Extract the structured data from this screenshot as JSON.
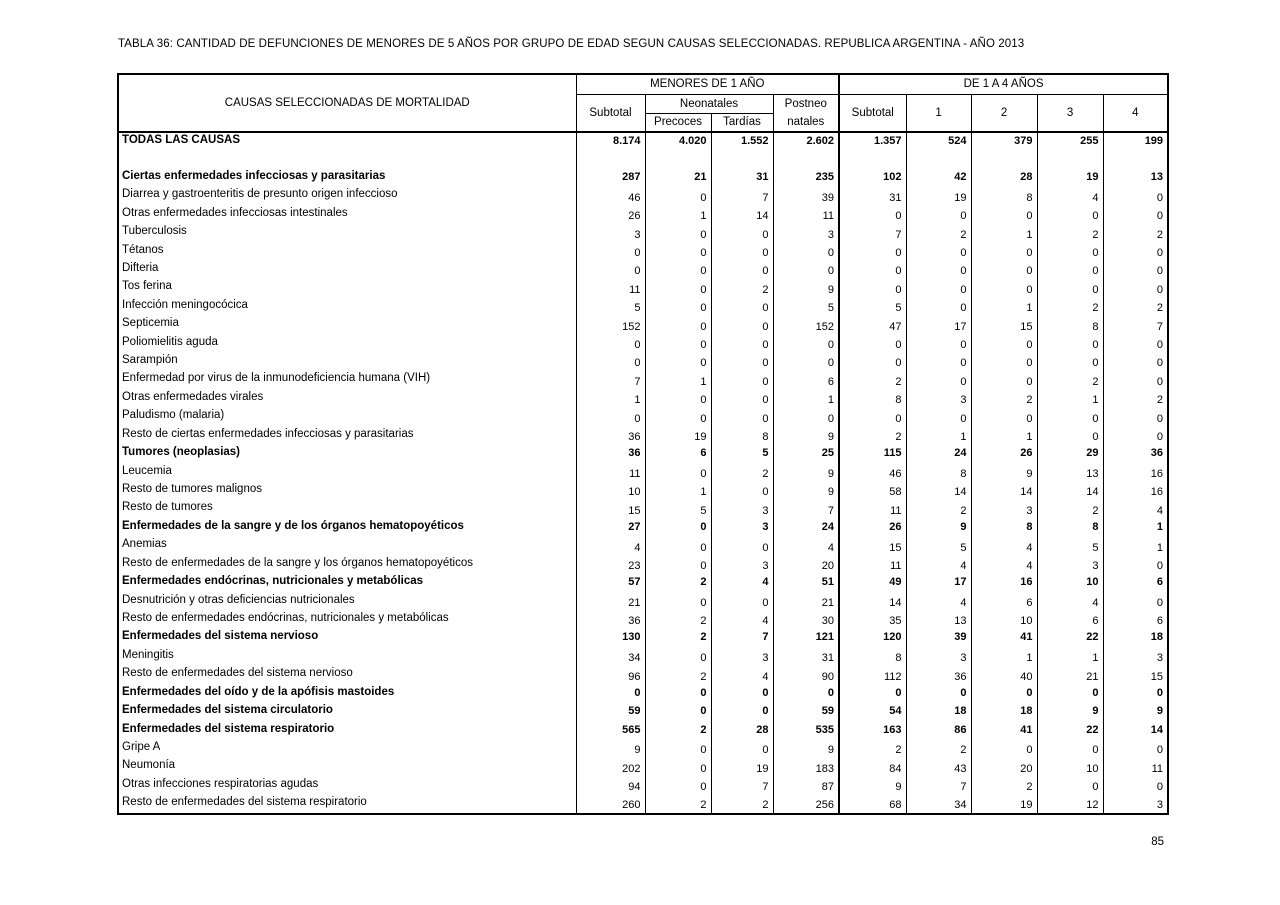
{
  "page": {
    "title": "TABLA 36: CANTIDAD DE DEFUNCIONES DE MENORES DE 5 AÑOS POR GRUPO DE EDAD SEGUN CAUSAS SELECCIONADAS. REPUBLICA ARGENTINA - AÑO 2013",
    "page_number": "85"
  },
  "table": {
    "header": {
      "causas": "CAUSAS SELECCIONADAS DE MORTALIDAD",
      "group1": "MENORES DE 1 AÑO",
      "group2": "DE  1 A 4 AÑOS",
      "subtotal1": "Subtotal",
      "neonatales": "Neonatales",
      "precoces": "Precoces",
      "tardias": "Tardías",
      "postneo_line1": "Postneo",
      "postneo_line2": "natales",
      "subtotal2": "Subtotal",
      "age1": "1",
      "age2": "2",
      "age3": "3",
      "age4": "4"
    },
    "rows": [
      {
        "label": "TODAS LAS CAUSAS",
        "bold": true,
        "values": [
          "8.174",
          "4.020",
          "1.552",
          "2.602",
          "1.357",
          "524",
          "379",
          "255",
          "199"
        ]
      },
      {
        "blank": true
      },
      {
        "label": "Ciertas enfermedades infecciosas y parasitarias",
        "bold": true,
        "values": [
          "287",
          "21",
          "31",
          "235",
          "102",
          "42",
          "28",
          "19",
          "13"
        ]
      },
      {
        "label": "Diarrea y gastroenteritis de presunto origen infeccioso",
        "bold": false,
        "values": [
          "46",
          "0",
          "7",
          "39",
          "31",
          "19",
          "8",
          "4",
          "0"
        ]
      },
      {
        "label": "Otras enfermedades infecciosas intestinales",
        "bold": false,
        "values": [
          "26",
          "1",
          "14",
          "11",
          "0",
          "0",
          "0",
          "0",
          "0"
        ]
      },
      {
        "label": "Tuberculosis",
        "bold": false,
        "values": [
          "3",
          "0",
          "0",
          "3",
          "7",
          "2",
          "1",
          "2",
          "2"
        ]
      },
      {
        "label": "Tétanos",
        "bold": false,
        "values": [
          "0",
          "0",
          "0",
          "0",
          "0",
          "0",
          "0",
          "0",
          "0"
        ]
      },
      {
        "label": "Difteria",
        "bold": false,
        "values": [
          "0",
          "0",
          "0",
          "0",
          "0",
          "0",
          "0",
          "0",
          "0"
        ]
      },
      {
        "label": "Tos ferina",
        "bold": false,
        "values": [
          "11",
          "0",
          "2",
          "9",
          "0",
          "0",
          "0",
          "0",
          "0"
        ]
      },
      {
        "label": "Infección meningocócica",
        "bold": false,
        "values": [
          "5",
          "0",
          "0",
          "5",
          "5",
          "0",
          "1",
          "2",
          "2"
        ]
      },
      {
        "label": "Septicemia",
        "bold": false,
        "values": [
          "152",
          "0",
          "0",
          "152",
          "47",
          "17",
          "15",
          "8",
          "7"
        ]
      },
      {
        "label": "Poliomielitis aguda",
        "bold": false,
        "values": [
          "0",
          "0",
          "0",
          "0",
          "0",
          "0",
          "0",
          "0",
          "0"
        ]
      },
      {
        "label": "Sarampión",
        "bold": false,
        "values": [
          "0",
          "0",
          "0",
          "0",
          "0",
          "0",
          "0",
          "0",
          "0"
        ]
      },
      {
        "label": "Enfermedad por virus de la inmunodeficiencia humana (VIH)",
        "bold": false,
        "values": [
          "7",
          "1",
          "0",
          "6",
          "2",
          "0",
          "0",
          "2",
          "0"
        ]
      },
      {
        "label": "Otras enfermedades virales",
        "bold": false,
        "values": [
          "1",
          "0",
          "0",
          "1",
          "8",
          "3",
          "2",
          "1",
          "2"
        ]
      },
      {
        "label": "Paludismo (malaria)",
        "bold": false,
        "values": [
          "0",
          "0",
          "0",
          "0",
          "0",
          "0",
          "0",
          "0",
          "0"
        ]
      },
      {
        "label": "Resto de ciertas enfermedades infecciosas y parasitarias",
        "bold": false,
        "values": [
          "36",
          "19",
          "8",
          "9",
          "2",
          "1",
          "1",
          "0",
          "0"
        ]
      },
      {
        "label": "Tumores (neoplasias)",
        "bold": true,
        "values": [
          "36",
          "6",
          "5",
          "25",
          "115",
          "24",
          "26",
          "29",
          "36"
        ]
      },
      {
        "label": "Leucemia",
        "bold": false,
        "values": [
          "11",
          "0",
          "2",
          "9",
          "46",
          "8",
          "9",
          "13",
          "16"
        ]
      },
      {
        "label": "Resto de tumores malignos",
        "bold": false,
        "values": [
          "10",
          "1",
          "0",
          "9",
          "58",
          "14",
          "14",
          "14",
          "16"
        ]
      },
      {
        "label": "Resto de tumores",
        "bold": false,
        "values": [
          "15",
          "5",
          "3",
          "7",
          "11",
          "2",
          "3",
          "2",
          "4"
        ]
      },
      {
        "label": "Enfermedades de la sangre y de los órganos hematopoyéticos",
        "bold": true,
        "values": [
          "27",
          "0",
          "3",
          "24",
          "26",
          "9",
          "8",
          "8",
          "1"
        ]
      },
      {
        "label": "Anemias",
        "bold": false,
        "values": [
          "4",
          "0",
          "0",
          "4",
          "15",
          "5",
          "4",
          "5",
          "1"
        ]
      },
      {
        "label": "Resto de enfermedades de la sangre y los órganos hematopoyéticos",
        "bold": false,
        "values": [
          "23",
          "0",
          "3",
          "20",
          "11",
          "4",
          "4",
          "3",
          "0"
        ]
      },
      {
        "label": "Enfermedades endócrinas, nutricionales y metabólicas",
        "bold": true,
        "values": [
          "57",
          "2",
          "4",
          "51",
          "49",
          "17",
          "16",
          "10",
          "6"
        ]
      },
      {
        "label": "Desnutrición y otras deficiencias nutricionales",
        "bold": false,
        "values": [
          "21",
          "0",
          "0",
          "21",
          "14",
          "4",
          "6",
          "4",
          "0"
        ]
      },
      {
        "label": "Resto de enfermedades endócrinas, nutricionales y metabólicas",
        "bold": false,
        "values": [
          "36",
          "2",
          "4",
          "30",
          "35",
          "13",
          "10",
          "6",
          "6"
        ]
      },
      {
        "label": "Enfermedades del sistema nervioso",
        "bold": true,
        "values": [
          "130",
          "2",
          "7",
          "121",
          "120",
          "39",
          "41",
          "22",
          "18"
        ]
      },
      {
        "label": "Meningitis",
        "bold": false,
        "values": [
          "34",
          "0",
          "3",
          "31",
          "8",
          "3",
          "1",
          "1",
          "3"
        ]
      },
      {
        "label": "Resto de enfermedades del sistema nervioso",
        "bold": false,
        "values": [
          "96",
          "2",
          "4",
          "90",
          "112",
          "36",
          "40",
          "21",
          "15"
        ]
      },
      {
        "label": "Enfermedades del oído y de la apófisis mastoides",
        "bold": true,
        "values": [
          "0",
          "0",
          "0",
          "0",
          "0",
          "0",
          "0",
          "0",
          "0"
        ]
      },
      {
        "label": "Enfermedades del sistema circulatorio",
        "bold": true,
        "values": [
          "59",
          "0",
          "0",
          "59",
          "54",
          "18",
          "18",
          "9",
          "9"
        ]
      },
      {
        "label": "Enfermedades del sistema respiratorio",
        "bold": true,
        "values": [
          "565",
          "2",
          "28",
          "535",
          "163",
          "86",
          "41",
          "22",
          "14"
        ]
      },
      {
        "label": "Gripe A",
        "bold": false,
        "values": [
          "9",
          "0",
          "0",
          "9",
          "2",
          "2",
          "0",
          "0",
          "0"
        ]
      },
      {
        "label": "Neumonía",
        "bold": false,
        "values": [
          "202",
          "0",
          "19",
          "183",
          "84",
          "43",
          "20",
          "10",
          "11"
        ]
      },
      {
        "label": "Otras infecciones respiratorias agudas",
        "bold": false,
        "values": [
          "94",
          "0",
          "7",
          "87",
          "9",
          "7",
          "2",
          "0",
          "0"
        ]
      },
      {
        "label": "Resto de enfermedades del sistema respiratorio",
        "bold": false,
        "values": [
          "260",
          "2",
          "2",
          "256",
          "68",
          "34",
          "19",
          "12",
          "3"
        ]
      }
    ]
  }
}
